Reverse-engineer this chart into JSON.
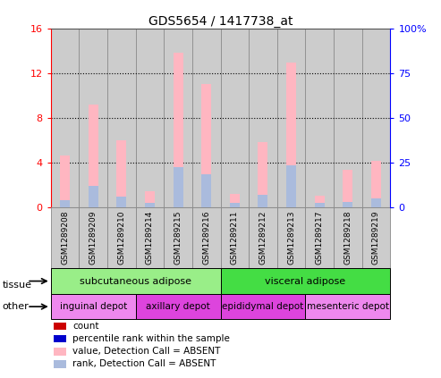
{
  "title": "GDS5654 / 1417738_at",
  "samples": [
    "GSM1289208",
    "GSM1289209",
    "GSM1289210",
    "GSM1289214",
    "GSM1289215",
    "GSM1289216",
    "GSM1289211",
    "GSM1289212",
    "GSM1289213",
    "GSM1289217",
    "GSM1289218",
    "GSM1289219"
  ],
  "value_absent": [
    4.6,
    9.2,
    6.0,
    1.4,
    13.8,
    11.0,
    1.2,
    5.8,
    12.9,
    1.0,
    3.3,
    4.1
  ],
  "rank_absent": [
    0.65,
    1.9,
    0.9,
    0.35,
    3.6,
    2.9,
    0.35,
    1.1,
    3.7,
    0.35,
    0.45,
    0.8
  ],
  "ylim_left": [
    0,
    16
  ],
  "ylim_right": [
    0,
    100
  ],
  "yticks_left": [
    0,
    4,
    8,
    12,
    16
  ],
  "yticks_right": [
    0,
    25,
    50,
    75,
    100
  ],
  "yticklabels_right": [
    "0",
    "25",
    "50",
    "75",
    "100%"
  ],
  "tissue_groups": [
    {
      "label": "subcutaneous adipose",
      "start": 0,
      "end": 6,
      "color": "#99EE88"
    },
    {
      "label": "visceral adipose",
      "start": 6,
      "end": 12,
      "color": "#44DD44"
    }
  ],
  "other_groups": [
    {
      "label": "inguinal depot",
      "start": 0,
      "end": 3,
      "color": "#EE88EE"
    },
    {
      "label": "axillary depot",
      "start": 3,
      "end": 6,
      "color": "#DD44DD"
    },
    {
      "label": "epididymal depot",
      "start": 6,
      "end": 9,
      "color": "#DD44DD"
    },
    {
      "label": "mesenteric depot",
      "start": 9,
      "end": 12,
      "color": "#EE88EE"
    }
  ],
  "bar_width": 0.35,
  "value_absent_color": "#FFB6C1",
  "rank_absent_color": "#AABBDD",
  "count_color": "#CC0000",
  "percentile_color": "#0000CC",
  "col_bg_color": "#CCCCCC",
  "col_border_color": "#888888",
  "legend_labels": [
    "count",
    "percentile rank within the sample",
    "value, Detection Call = ABSENT",
    "rank, Detection Call = ABSENT"
  ],
  "legend_colors": [
    "#CC0000",
    "#0000CC",
    "#FFB6C1",
    "#AABBDD"
  ]
}
